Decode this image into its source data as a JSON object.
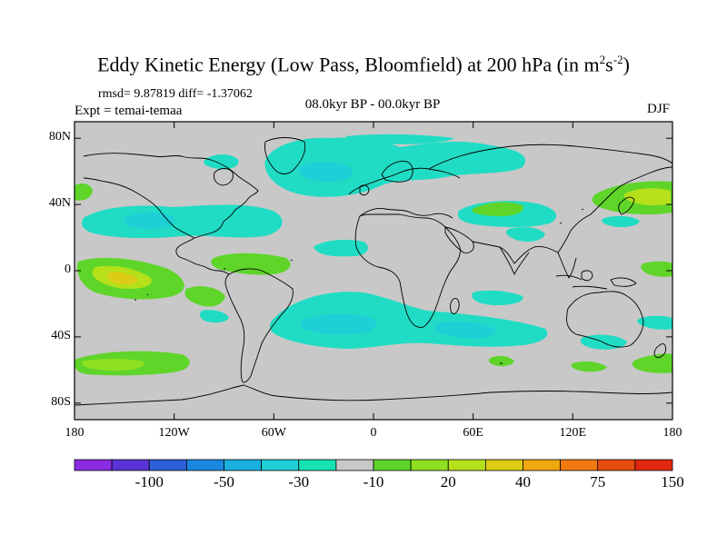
{
  "title": {
    "main": "Eddy Kinetic Energy (Low Pass, Bloomfield) at 200 hPa (in m",
    "sup1": "2",
    "mid": "s",
    "sup2": "-2",
    "end": ")"
  },
  "stats": "rmsd= 9.87819 diff= -1.37062",
  "experiment": "Expt = temai-temaa",
  "period": "08.0kyr BP - 00.0kyr BP",
  "season": "DJF",
  "axes": {
    "y_ticks": [
      {
        "label": "80N",
        "value": 80
      },
      {
        "label": "40N",
        "value": 40
      },
      {
        "label": "0",
        "value": 0
      },
      {
        "label": "40S",
        "value": -40
      },
      {
        "label": "80S",
        "value": -80
      }
    ],
    "x_ticks": [
      {
        "label": "180",
        "value": -180
      },
      {
        "label": "120W",
        "value": -120
      },
      {
        "label": "60W",
        "value": -60
      },
      {
        "label": "0",
        "value": 0
      },
      {
        "label": "60E",
        "value": 60
      },
      {
        "label": "120E",
        "value": 120
      },
      {
        "label": "180",
        "value": 180
      }
    ]
  },
  "colorbar": {
    "colors": [
      "#8a2be2",
      "#5a33d8",
      "#2f5fd8",
      "#1a88e0",
      "#19b0e0",
      "#1ed0d6",
      "#16e2b4",
      "#c8c8c8",
      "#5fd52a",
      "#8ee020",
      "#b5e01a",
      "#dccc15",
      "#f0a810",
      "#f07a10",
      "#e84d10",
      "#e02810"
    ],
    "labels": [
      "-100",
      "-50",
      "-30",
      "-10",
      "20",
      "40",
      "75",
      "150"
    ]
  },
  "map": {
    "ocean_color": "#c8c8c8",
    "coast_color": "#000000",
    "palette": {
      "cyan_light": "#20e0c0",
      "cyan": "#1ecfd6",
      "cyan_deep": "#19b5e0",
      "green": "#5fd52a",
      "green_light": "#8ee020",
      "yellow": "#dccc15",
      "orange": "#f0a810"
    }
  }
}
